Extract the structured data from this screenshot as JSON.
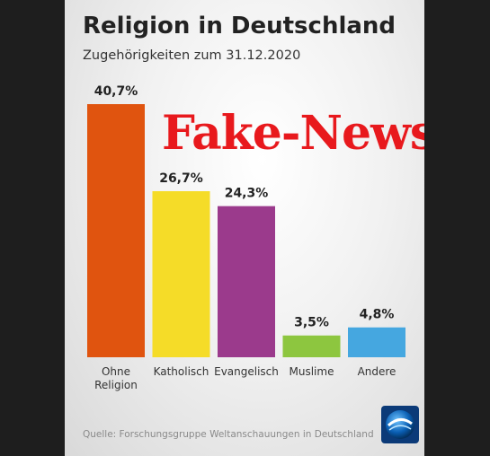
{
  "title": "Religion in Deutschland",
  "subtitle": "Zugehörigkeiten zum 31.12.2020",
  "overlay_text": "Fake-News",
  "source": "Quelle: Forschungsgruppe Weltanschauungen in Deutschland",
  "logo_icon": "tagesschau-globe-icon",
  "colors": {
    "overlay": "#e8191d",
    "bars": [
      "#e0540f",
      "#f5dc28",
      "#9b3a8c",
      "#8dc63f",
      "#45a7e0"
    ]
  },
  "chart_data": {
    "type": "bar",
    "title": "Religion in Deutschland",
    "subtitle": "Zugehörigkeiten zum 31.12.2020",
    "categories": [
      [
        "Ohne",
        "Religion"
      ],
      [
        "Katholisch"
      ],
      [
        "Evangelisch"
      ],
      [
        "Muslime"
      ],
      [
        "Andere"
      ]
    ],
    "values": [
      40.7,
      26.7,
      24.3,
      3.5,
      4.8
    ],
    "value_labels": [
      "40,7%",
      "26,7%",
      "24,3%",
      "3,5%",
      "4,8%"
    ],
    "unit": "%",
    "xlabel": "",
    "ylabel": "",
    "ylim": [
      0,
      40.7
    ],
    "grid": false,
    "legend": "none"
  }
}
